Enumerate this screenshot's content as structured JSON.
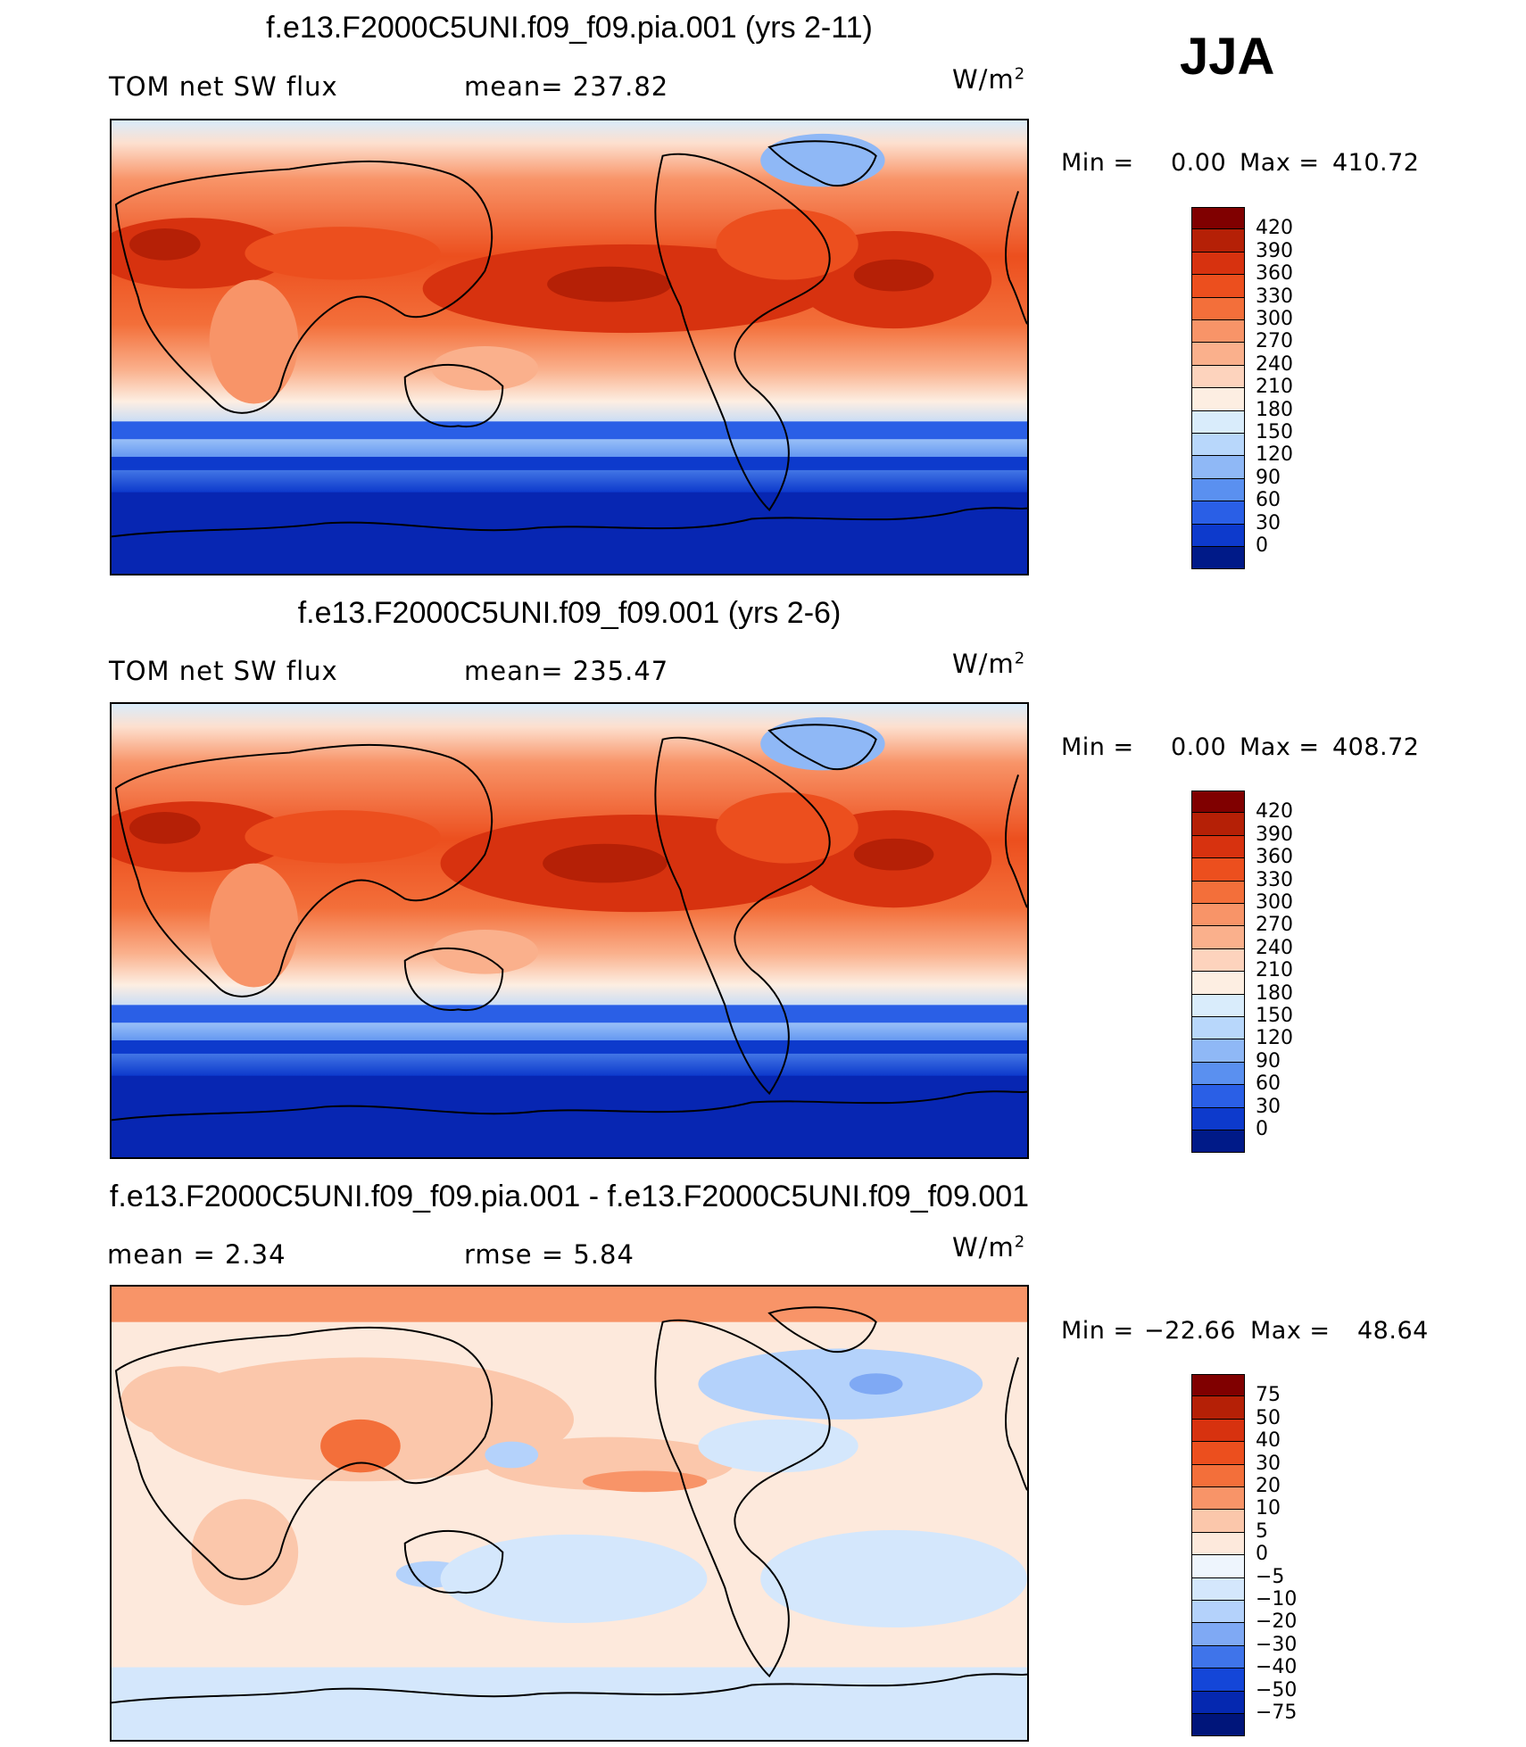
{
  "season": "JJA",
  "panels": [
    {
      "title": "f.e13.F2000C5UNI.f09_f09.pia.001 (yrs 2-11)",
      "left_text": "TOM  net  SW  flux",
      "right_text": "mean=  237.82",
      "unit_base": "W/m",
      "unit_exp": "2",
      "min_label": "Min  =",
      "min_value": "0.00",
      "max_label": "Max  =",
      "max_value": "410.72",
      "colorbar": {
        "levels": [
          "420",
          "390",
          "360",
          "330",
          "300",
          "270",
          "240",
          "210",
          "180",
          "150",
          "120",
          "90",
          "60",
          "30",
          "0"
        ],
        "colors": [
          "#800000",
          "#b52006",
          "#d7320f",
          "#ec4f1e",
          "#f36f3a",
          "#f89468",
          "#fab08c",
          "#fdd3bd",
          "#fdeee2",
          "#d9ecfb",
          "#b8d7fb",
          "#8fb8f6",
          "#5a90f0",
          "#2a5fe6",
          "#0d3acc",
          "#001a88"
        ]
      }
    },
    {
      "title": "f.e13.F2000C5UNI.f09_f09.001 (yrs 2-6)",
      "left_text": "TOM  net  SW  flux",
      "right_text": "mean=  235.47",
      "unit_base": "W/m",
      "unit_exp": "2",
      "min_label": "Min  =",
      "min_value": "0.00",
      "max_label": "Max  =",
      "max_value": "408.72",
      "colorbar": {
        "levels": [
          "420",
          "390",
          "360",
          "330",
          "300",
          "270",
          "240",
          "210",
          "180",
          "150",
          "120",
          "90",
          "60",
          "30",
          "0"
        ],
        "colors": [
          "#800000",
          "#b52006",
          "#d7320f",
          "#ec4f1e",
          "#f36f3a",
          "#f89468",
          "#fab08c",
          "#fdd3bd",
          "#fdeee2",
          "#d9ecfb",
          "#b8d7fb",
          "#8fb8f6",
          "#5a90f0",
          "#2a5fe6",
          "#0d3acc",
          "#001a88"
        ]
      }
    },
    {
      "title": "f.e13.F2000C5UNI.f09_f09.pia.001 - f.e13.F2000C5UNI.f09_f09.001",
      "left_text": "mean  =     2.34",
      "right_text": "rmse  =     5.84",
      "unit_base": "W/m",
      "unit_exp": "2",
      "min_label": "Min  =",
      "min_value": "−22.66",
      "max_label": "Max  =",
      "max_value": "48.64",
      "colorbar": {
        "levels": [
          "75",
          "50",
          "40",
          "30",
          "20",
          "10",
          "5",
          "0",
          "−5",
          "−10",
          "−20",
          "−30",
          "−40",
          "−50",
          "−75"
        ],
        "colors": [
          "#800000",
          "#b52006",
          "#d7320f",
          "#ec4f1e",
          "#f36f3a",
          "#f89468",
          "#fbc7ab",
          "#fde9dc",
          "#eef5fd",
          "#d4e7fc",
          "#b4d2fb",
          "#7fa9f4",
          "#3f74ea",
          "#1446d8",
          "#0528b0",
          "#00157a"
        ]
      }
    }
  ]
}
